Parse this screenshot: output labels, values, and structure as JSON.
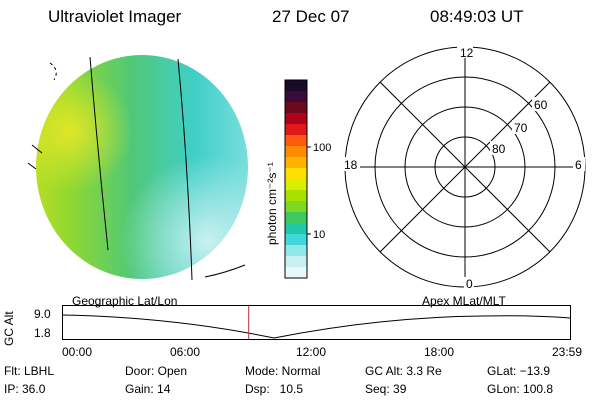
{
  "header": {
    "title": "Ultraviolet Imager",
    "date": "27 Dec 07",
    "time": "08:49:03 UT"
  },
  "colorbar": {
    "unit_label": "photon cm⁻²s⁻¹",
    "ticks": [
      "100",
      "10"
    ],
    "colors": [
      "#1a0a2a",
      "#3a0a3a",
      "#6a0a1a",
      "#b0001a",
      "#e01a1a",
      "#ff5a10",
      "#ff8c00",
      "#ffb300",
      "#ffe000",
      "#d8f000",
      "#a8e000",
      "#7cd820",
      "#40c860",
      "#20c8a8",
      "#40d8d8",
      "#90e8e8",
      "#c8f0f0",
      "#e8f8f8"
    ]
  },
  "polar_plot": {
    "mlt_labels": {
      "top": "12",
      "left": "18",
      "right": "6",
      "bottom": "0"
    },
    "lat_labels": [
      "60",
      "70",
      "80"
    ]
  },
  "timeline": {
    "left_label": "Geographic Lat/Lon",
    "right_label": "Apex MLat/MLT",
    "y_axis_label": "GC Alt",
    "y_ticks": [
      "9.0",
      "1.8"
    ],
    "x_ticks": [
      "00:00",
      "06:00",
      "12:00",
      "18:00",
      "23:59"
    ],
    "marker_time_hours": 8.82
  },
  "status": {
    "flt": "Flt: LBHL",
    "ip": "IP: 36.0",
    "door": "Door: Open",
    "gain": "Gain: 14",
    "mode": "Mode: Normal",
    "dsp": "Dsp:   10.5",
    "gcalt": "GC Alt: 3.3 Re",
    "seq": "Seq: 39",
    "glat": "GLat: −13.9",
    "glon": "GLon: 100.8"
  }
}
